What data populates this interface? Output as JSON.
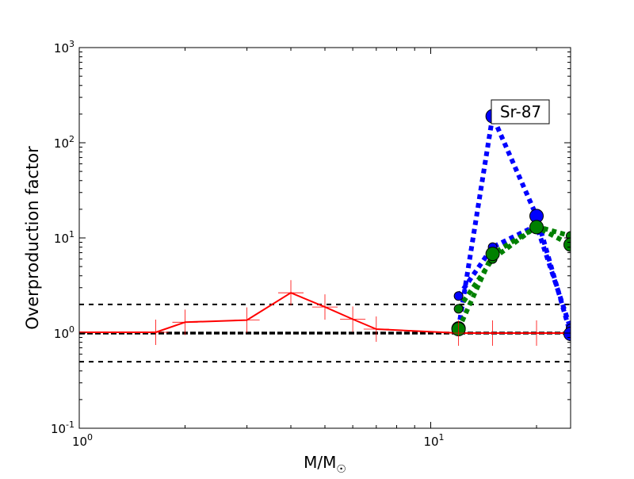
{
  "chart_data": {
    "type": "line",
    "xscale": "log",
    "yscale": "log",
    "xlim": [
      1,
      25
    ],
    "ylim": [
      0.1,
      1000
    ],
    "xlabel": "M/M☉",
    "ylabel": "Overproduction factor",
    "x_ticks": [
      {
        "value": 1,
        "base": "10",
        "exp": "0"
      },
      {
        "value": 10,
        "base": "10",
        "exp": "1"
      }
    ],
    "y_ticks": [
      {
        "value": 0.1,
        "base": "10",
        "exp": "-1"
      },
      {
        "value": 1,
        "base": "10",
        "exp": "0"
      },
      {
        "value": 10,
        "base": "10",
        "exp": "1"
      },
      {
        "value": 100,
        "base": "10",
        "exp": "2"
      },
      {
        "value": 1000,
        "base": "10",
        "exp": "3"
      }
    ],
    "annotation": "Sr-87",
    "annotation_at": {
      "x": 15,
      "y": 190
    },
    "hlines": [
      {
        "y": 2.0,
        "style": "dashed",
        "weight": "thin"
      },
      {
        "y": 1.0,
        "style": "dashed",
        "weight": "thick"
      },
      {
        "y": 0.5,
        "style": "dashed",
        "weight": "thin"
      }
    ],
    "series": [
      {
        "color": "#ff0000",
        "style": "solid",
        "marker": "plus",
        "x": [
          1,
          1.65,
          2,
          3,
          4,
          5,
          6,
          7,
          12,
          15,
          20,
          25
        ],
        "y": [
          1.02,
          1.02,
          1.3,
          1.37,
          2.65,
          1.88,
          1.4,
          1.1,
          1.0,
          1.0,
          1.0,
          1.0
        ]
      },
      {
        "color": "#0000ff",
        "style": "dotted",
        "marker": "circle-large",
        "x": [
          12,
          15,
          20,
          25
        ],
        "y": [
          1.12,
          190,
          17,
          0.98
        ]
      },
      {
        "color": "#0000ff",
        "style": "dotted",
        "marker": "circle-small",
        "x": [
          12,
          15,
          20,
          25
        ],
        "y": [
          2.45,
          8.0,
          13.5,
          1.12
        ]
      },
      {
        "color": "#008000",
        "style": "dotted",
        "marker": "circle-large",
        "x": [
          12,
          15,
          20,
          25
        ],
        "y": [
          1.1,
          6.8,
          13.0,
          8.5
        ]
      },
      {
        "color": "#008000",
        "style": "dotted",
        "marker": "circle-small",
        "x": [
          12,
          15,
          20,
          25
        ],
        "y": [
          1.8,
          6.0,
          13.2,
          10.5
        ]
      }
    ]
  }
}
